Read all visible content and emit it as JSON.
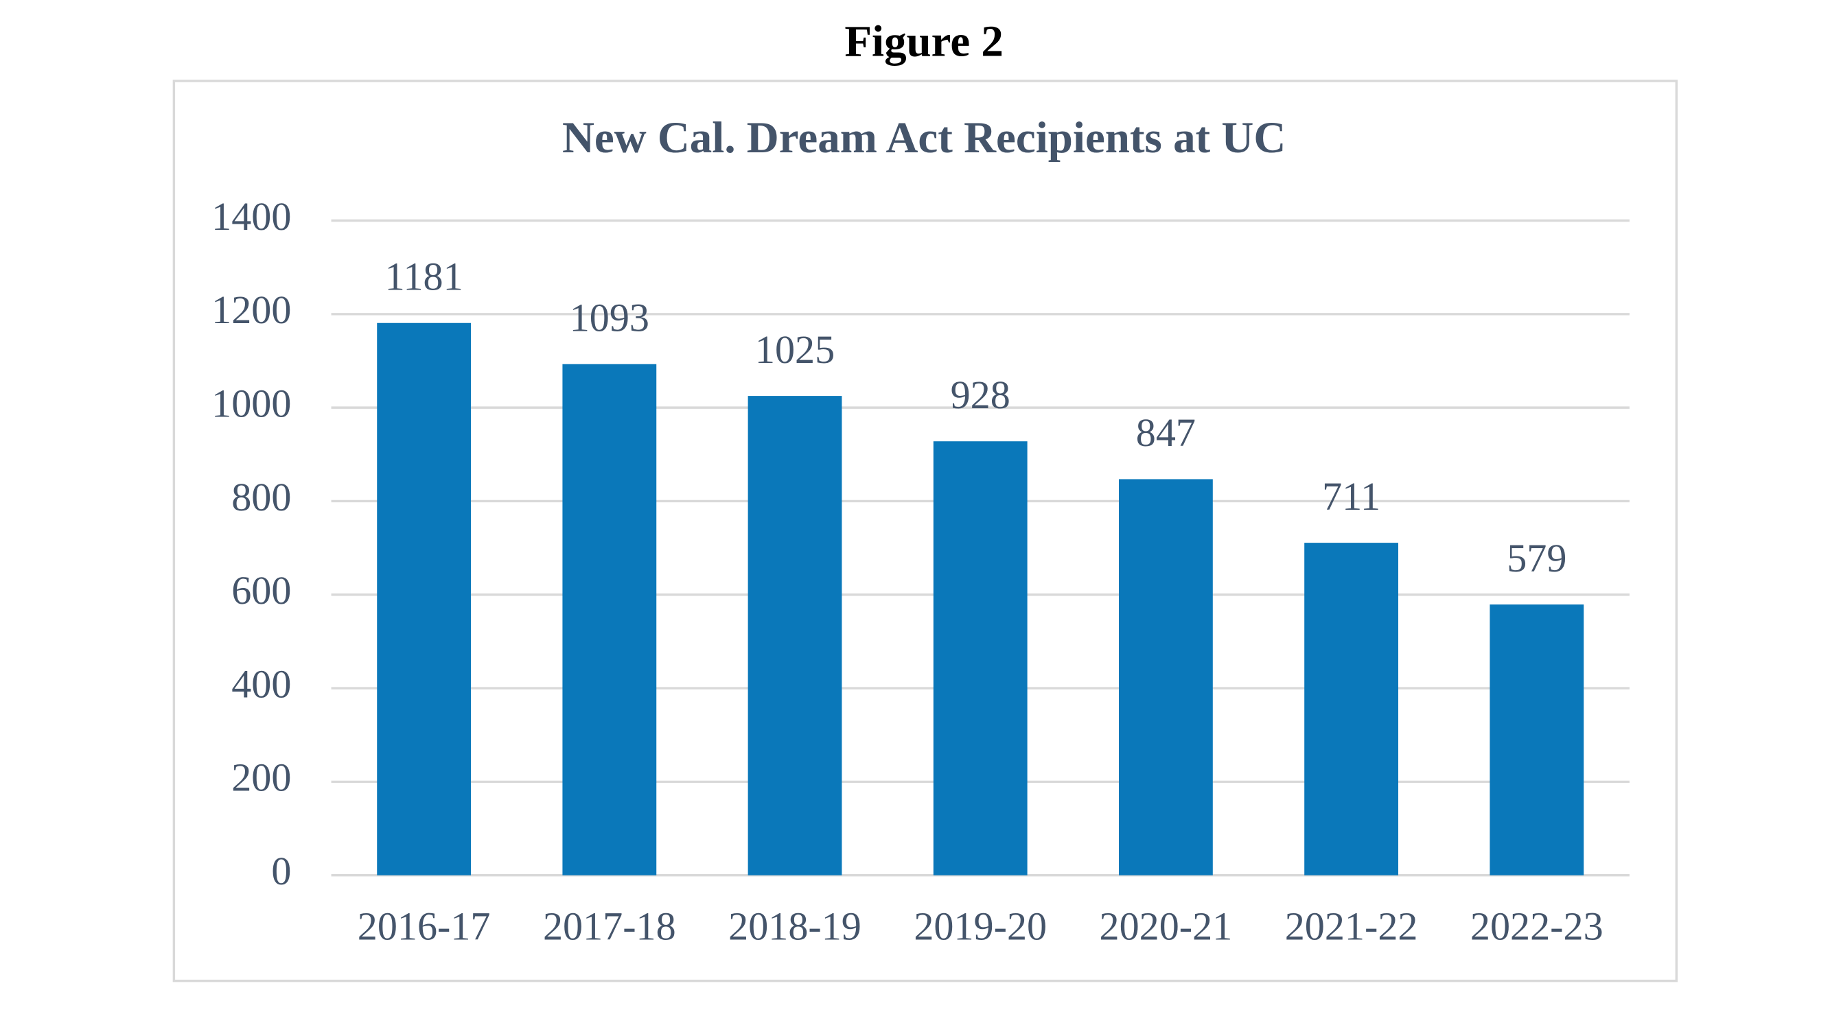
{
  "figure_label": "Figure 2",
  "chart_data": {
    "type": "bar",
    "title": "New Cal. Dream Act Recipients at UC",
    "categories": [
      "2016-17",
      "2017-18",
      "2018-19",
      "2019-20",
      "2020-21",
      "2021-22",
      "2022-23"
    ],
    "values": [
      1181,
      1093,
      1025,
      928,
      847,
      711,
      579
    ],
    "color": "#0a78ba",
    "ylim": [
      0,
      1400
    ],
    "yticks": [
      0,
      200,
      400,
      600,
      800,
      1000,
      1200,
      1400
    ],
    "grid": true
  }
}
